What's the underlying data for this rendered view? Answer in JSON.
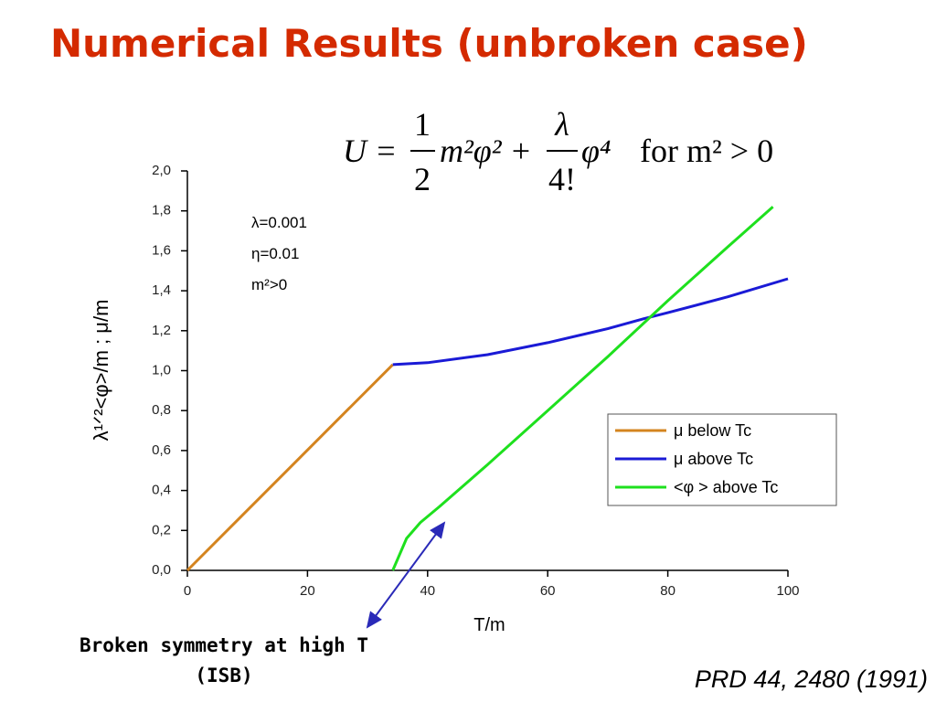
{
  "slide_title": "Numerical Results (unbroken case)",
  "equation": {
    "lhs": "U =",
    "frac1": [
      "1",
      "2"
    ],
    "term1": "m²φ² +",
    "frac2": [
      "λ",
      "4!"
    ],
    "term2": "φ⁴",
    "condition": "for  m²  > 0"
  },
  "callout": [
    "Broken symmetry at high T",
    "(ISB)"
  ],
  "reference": "PRD 44, 2480 (1991)",
  "chart_data": {
    "type": "line",
    "xlabel": "T/m",
    "ylabel": "λ¹ᐟ²<φ>/m   ;   μ/m",
    "annotations": [
      "λ=0.001",
      "η=0.01",
      "m²>0"
    ],
    "xlim": [
      0,
      100
    ],
    "xticks": [
      0,
      20,
      40,
      60,
      80,
      100
    ],
    "ylim": [
      0,
      2
    ],
    "yticks": [
      {
        "value": 0,
        "label": "0,0"
      },
      {
        "value": 0.2,
        "label": "0,2"
      },
      {
        "value": 0.4,
        "label": "0,4"
      },
      {
        "value": 0.6,
        "label": "0,6"
      },
      {
        "value": 0.8,
        "label": "0,8"
      },
      {
        "value": 1,
        "label": "1,0"
      },
      {
        "value": 1.2,
        "label": "1,2"
      },
      {
        "value": 1.4,
        "label": "1,4"
      },
      {
        "value": 1.6,
        "label": "1,6"
      },
      {
        "value": 1.8,
        "label": "1,8"
      },
      {
        "value": 2,
        "label": "2,0"
      }
    ],
    "legend": "lower right",
    "series": [
      {
        "name": "μ below Tc",
        "color": "#d4841f",
        "x": [
          0,
          34.2
        ],
        "values": [
          0,
          1.03
        ]
      },
      {
        "name": "μ above Tc",
        "color": "#1a1ad6",
        "x": [
          34.2,
          40,
          50,
          60,
          70,
          76,
          80,
          90,
          100
        ],
        "values": [
          1.03,
          1.04,
          1.08,
          1.14,
          1.21,
          1.26,
          1.29,
          1.37,
          1.46
        ]
      },
      {
        "name": "<φ > above Tc",
        "color": "#1ee01e",
        "x": [
          34.2,
          36.5,
          38.8,
          42,
          50,
          60,
          70,
          80,
          90,
          97.5
        ],
        "values": [
          0,
          0.16,
          0.24,
          0.32,
          0.53,
          0.8,
          1.07,
          1.35,
          1.62,
          1.82
        ]
      }
    ]
  }
}
